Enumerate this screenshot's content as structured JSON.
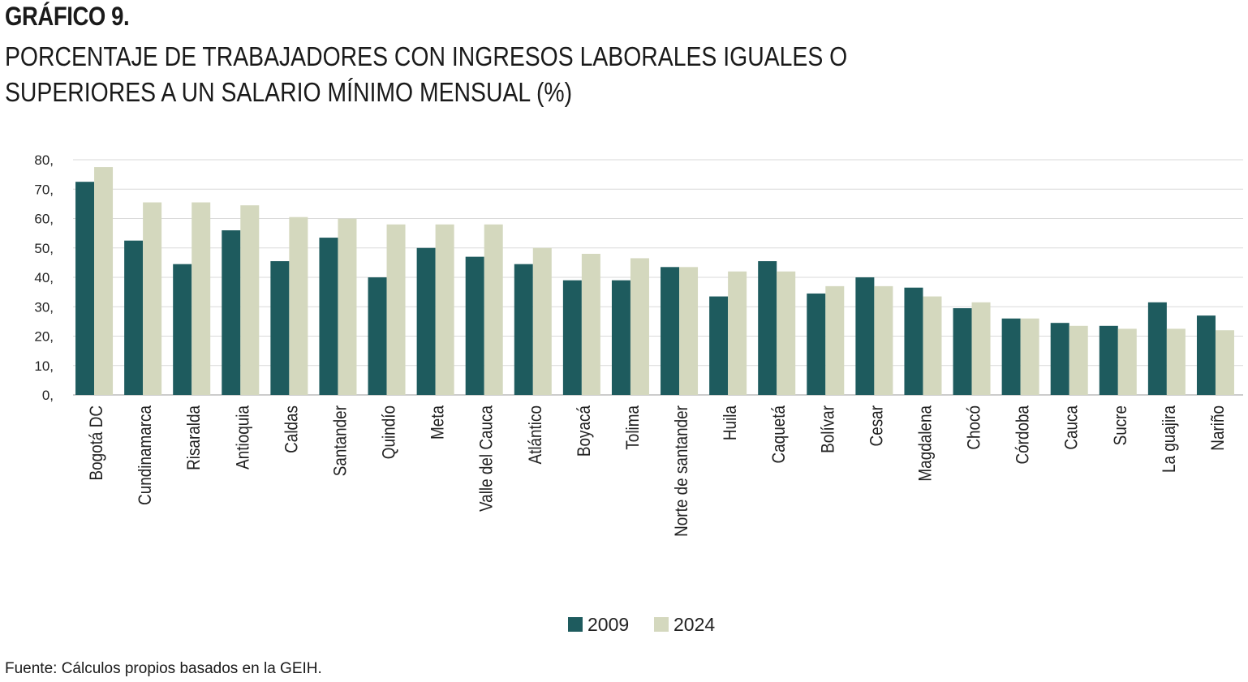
{
  "header": {
    "figure_label": "GRÁFICO 9.",
    "title_line1": "PORCENTAJE DE TRABAJADORES CON INGRESOS LABORALES IGUALES O",
    "title_line2": "SUPERIORES A UN SALARIO MÍNIMO MENSUAL (%)"
  },
  "footer": {
    "source": "Fuente: Cálculos propios basados en la GEIH."
  },
  "chart_data": {
    "type": "bar",
    "title": "PORCENTAJE DE TRABAJADORES CON INGRESOS LABORALES IGUALES O SUPERIORES A UN SALARIO MÍNIMO MENSUAL (%)",
    "xlabel": "",
    "ylabel": "",
    "ylim": [
      0,
      80
    ],
    "yticks": [
      0,
      10,
      20,
      30,
      40,
      50,
      60,
      70,
      80
    ],
    "ytick_labels": [
      "0,",
      "10,",
      "20,",
      "30,",
      "40,",
      "50,",
      "60,",
      "70,",
      "80,"
    ],
    "grid": true,
    "legend_position": "bottom-center",
    "categories": [
      "Bogotá DC",
      "Cundinamarca",
      "Risaralda",
      "Antioquia",
      "Caldas",
      "Santander",
      "Quindío",
      "Meta",
      "Valle del Cauca",
      "Atlántico",
      "Boyacá",
      "Tolima",
      "Norte de santander",
      "Huila",
      "Caquetá",
      "Bolívar",
      "Cesar",
      "Magdalena",
      "Chocó",
      "Córdoba",
      "Cauca",
      "Sucre",
      "La guajira",
      "Nariño"
    ],
    "series": [
      {
        "name": "2009",
        "color": "#1e5b5e",
        "values": [
          72.5,
          52.5,
          44.5,
          56,
          45.5,
          53.5,
          40,
          50,
          47,
          44.5,
          39,
          39,
          43.5,
          33.5,
          45.5,
          34.5,
          40,
          36.5,
          29.5,
          26,
          24.5,
          23.5,
          31.5,
          27
        ]
      },
      {
        "name": "2024",
        "color": "#d4d8be",
        "values": [
          77.5,
          65.5,
          65.5,
          64.5,
          60.5,
          60,
          58,
          58,
          58,
          50,
          48,
          46.5,
          43.5,
          42,
          42,
          37,
          37,
          33.5,
          31.5,
          26,
          23.5,
          22.5,
          22.5,
          22
        ]
      }
    ]
  }
}
